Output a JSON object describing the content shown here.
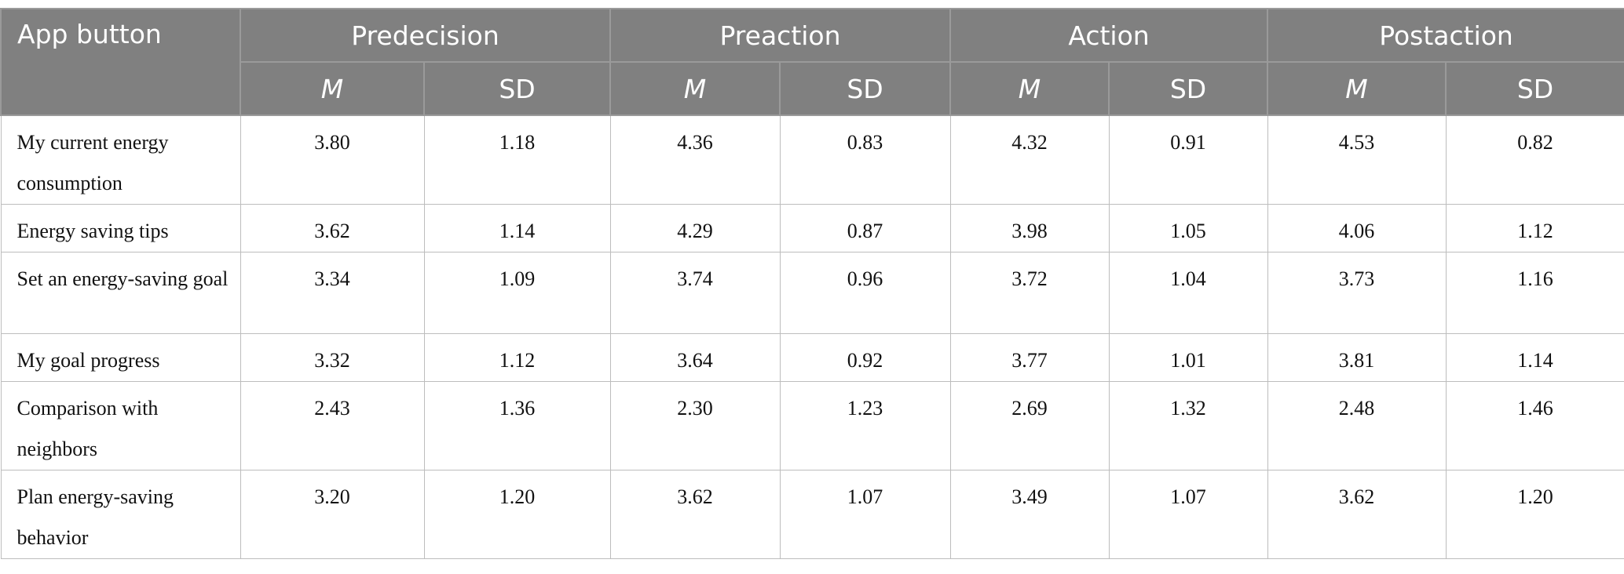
{
  "table": {
    "row_header": "App button",
    "phases": [
      "Predecision",
      "Preaction",
      "Action",
      "Postaction"
    ],
    "sub_headers": [
      "M",
      "SD"
    ],
    "header_color": "#808080",
    "rows": [
      {
        "label": "My current energy consumption",
        "values": [
          "3.80",
          "1.18",
          "4.36",
          "0.83",
          "4.32",
          "0.91",
          "4.53",
          "0.82"
        ]
      },
      {
        "label": "Energy saving tips",
        "values": [
          "3.62",
          "1.14",
          "4.29",
          "0.87",
          "3.98",
          "1.05",
          "4.06",
          "1.12"
        ]
      },
      {
        "label": "Set an energy-saving goal",
        "values": [
          "3.34",
          "1.09",
          "3.74",
          "0.96",
          "3.72",
          "1.04",
          "3.73",
          "1.16"
        ]
      },
      {
        "label": "My goal progress",
        "values": [
          "3.32",
          "1.12",
          "3.64",
          "0.92",
          "3.77",
          "1.01",
          "3.81",
          "1.14"
        ]
      },
      {
        "label": "Comparison with neighbors",
        "values": [
          "2.43",
          "1.36",
          "2.30",
          "1.23",
          "2.69",
          "1.32",
          "2.48",
          "1.46"
        ]
      },
      {
        "label": "Plan energy-saving behavior",
        "values": [
          "3.20",
          "1.20",
          "3.62",
          "1.07",
          "3.49",
          "1.07",
          "3.62",
          "1.20"
        ]
      }
    ]
  }
}
